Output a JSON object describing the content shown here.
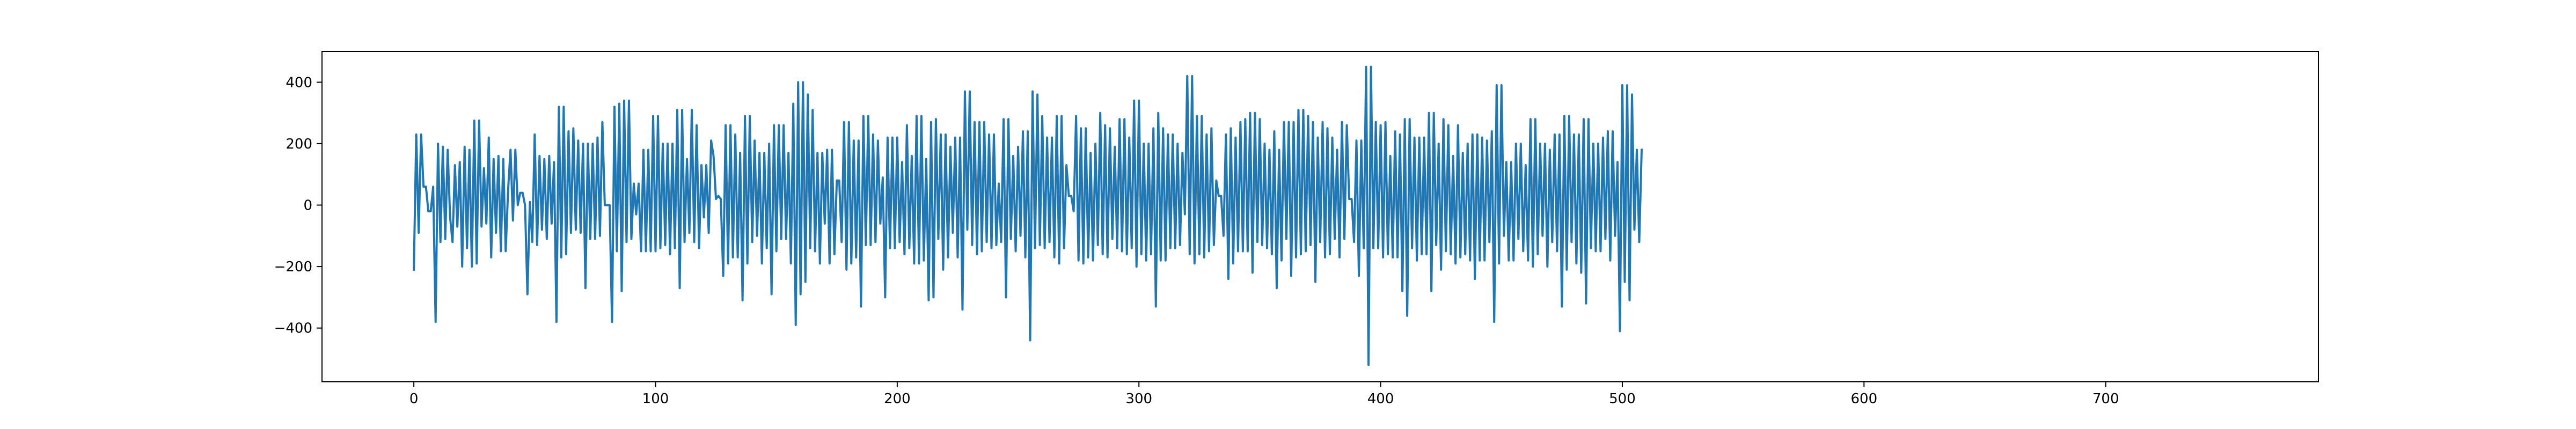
{
  "chart_data": {
    "type": "line",
    "title": "",
    "xlabel": "",
    "ylabel": "",
    "xlim": [
      -38,
      788
    ],
    "ylim": [
      -575,
      500
    ],
    "grid": false,
    "legend": "none",
    "x_ticks": [
      0,
      100,
      200,
      300,
      400,
      500,
      600,
      700
    ],
    "y_ticks": [
      -400,
      -200,
      0,
      200,
      400
    ],
    "series": [
      {
        "color": "#1f77b4",
        "x_start": 0,
        "x_step": 1,
        "values": [
          -210,
          230,
          -90,
          230,
          60,
          60,
          -20,
          -20,
          60,
          -380,
          200,
          -120,
          190,
          -110,
          180,
          -40,
          -120,
          130,
          -70,
          140,
          -200,
          190,
          -140,
          180,
          -200,
          275,
          -190,
          275,
          -70,
          120,
          -60,
          220,
          -170,
          150,
          -90,
          160,
          -150,
          150,
          -150,
          50,
          180,
          -50,
          180,
          0,
          40,
          40,
          0,
          -290,
          10,
          -120,
          230,
          -130,
          160,
          -80,
          150,
          -110,
          160,
          -60,
          140,
          -380,
          320,
          -170,
          320,
          -160,
          240,
          -90,
          250,
          -80,
          210,
          -90,
          200,
          -270,
          200,
          -110,
          200,
          -110,
          220,
          -100,
          270,
          0,
          0,
          0,
          -380,
          320,
          -150,
          330,
          -280,
          340,
          -120,
          340,
          -110,
          70,
          -30,
          70,
          -150,
          180,
          -150,
          180,
          -150,
          290,
          -150,
          290,
          -140,
          200,
          -130,
          200,
          -160,
          200,
          -140,
          310,
          -270,
          310,
          -120,
          150,
          -90,
          310,
          -120,
          260,
          -140,
          130,
          -40,
          130,
          -90,
          210,
          160,
          20,
          30,
          20,
          -230,
          260,
          -190,
          260,
          -170,
          230,
          -170,
          170,
          -310,
          290,
          -190,
          290,
          -120,
          210,
          -100,
          170,
          -190,
          170,
          -140,
          200,
          -290,
          260,
          -150,
          260,
          -110,
          260,
          -110,
          170,
          -190,
          330,
          -390,
          400,
          -290,
          400,
          -250,
          360,
          -140,
          310,
          -150,
          170,
          -190,
          170,
          -60,
          180,
          -190,
          180,
          -160,
          80,
          80,
          -120,
          270,
          -210,
          270,
          -190,
          210,
          -170,
          210,
          -330,
          290,
          -130,
          290,
          -130,
          230,
          -120,
          210,
          -60,
          90,
          -300,
          220,
          -140,
          220,
          -140,
          220,
          -120,
          140,
          -160,
          260,
          -140,
          160,
          -190,
          290,
          -190,
          290,
          -180,
          150,
          -310,
          270,
          -300,
          280,
          -110,
          230,
          -210,
          230,
          -170,
          190,
          -90,
          220,
          -170,
          220,
          -340,
          370,
          -80,
          370,
          -130,
          270,
          -160,
          270,
          -150,
          270,
          -120,
          230,
          -140,
          230,
          -130,
          70,
          -120,
          280,
          -300,
          280,
          -110,
          160,
          -150,
          190,
          -100,
          240,
          -170,
          240,
          -440,
          370,
          -140,
          360,
          -130,
          290,
          -140,
          220,
          -120,
          220,
          -170,
          290,
          -190,
          290,
          -140,
          130,
          30,
          30,
          -20,
          290,
          -180,
          250,
          -190,
          250,
          -170,
          170,
          -180,
          200,
          -130,
          300,
          -160,
          260,
          -170,
          250,
          -110,
          190,
          -140,
          280,
          -150,
          280,
          -160,
          220,
          -140,
          340,
          -200,
          340,
          -160,
          200,
          -180,
          200,
          -160,
          250,
          -330,
          300,
          -180,
          250,
          -180,
          230,
          -140,
          230,
          -140,
          200,
          -130,
          170,
          -30,
          420,
          -160,
          420,
          -190,
          290,
          -160,
          290,
          -170,
          230,
          -150,
          250,
          -130,
          80,
          30,
          30,
          -100,
          230,
          -240,
          250,
          -190,
          220,
          -150,
          270,
          -150,
          280,
          -150,
          300,
          -220,
          300,
          -120,
          280,
          -130,
          200,
          -140,
          180,
          -160,
          240,
          -270,
          180,
          -180,
          270,
          -110,
          270,
          -230,
          270,
          -170,
          310,
          -160,
          310,
          -150,
          290,
          -130,
          270,
          -250,
          220,
          -120,
          270,
          -170,
          250,
          -160,
          220,
          -110,
          180,
          -170,
          270,
          -110,
          260,
          20,
          20,
          -120,
          210,
          -230,
          210,
          -140,
          450,
          -520,
          450,
          -140,
          270,
          -140,
          260,
          -170,
          270,
          -160,
          160,
          -170,
          240,
          -170,
          230,
          -280,
          280,
          -360,
          280,
          -140,
          220,
          -180,
          220,
          -160,
          220,
          -160,
          300,
          -280,
          300,
          -130,
          200,
          -210,
          280,
          -150,
          260,
          -160,
          160,
          -190,
          260,
          -170,
          170,
          -160,
          200,
          -180,
          230,
          -240,
          230,
          -180,
          220,
          -180,
          210,
          -120,
          240,
          -380,
          390,
          -190,
          390,
          -100,
          140,
          -180,
          140,
          -180,
          200,
          -110,
          200,
          -150,
          130,
          -180,
          280,
          -200,
          280,
          -160,
          200,
          -100,
          200,
          -200,
          180,
          -120,
          230,
          -150,
          230,
          -330,
          290,
          -210,
          290,
          -120,
          230,
          -190,
          230,
          -220,
          280,
          -320,
          280,
          -140,
          200,
          -150,
          200,
          -150,
          220,
          -110,
          240,
          -180,
          240,
          -100,
          140,
          -410,
          390,
          -250,
          390,
          -310,
          360,
          -80,
          180,
          -120,
          180
        ]
      }
    ]
  }
}
